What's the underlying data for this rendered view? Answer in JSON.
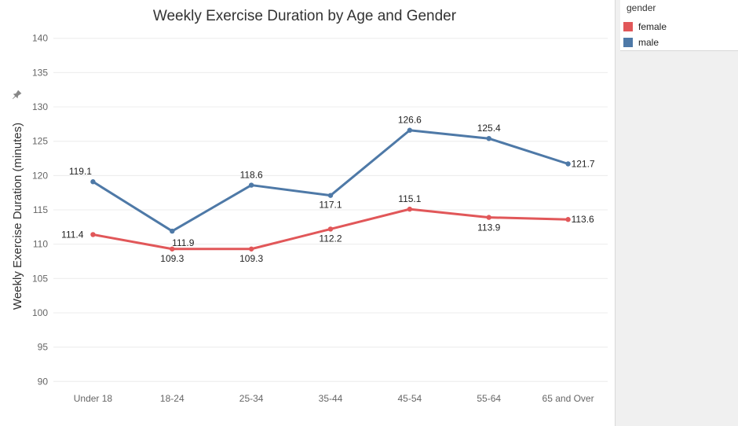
{
  "chart_data": {
    "type": "line",
    "title": "Weekly Exercise Duration by Age and Gender",
    "xlabel": "",
    "ylabel": "Weekly Exercise Duration (minutes)",
    "categories": [
      "Under 18",
      "18-24",
      "25-34",
      "35-44",
      "45-54",
      "55-64",
      "65 and Over"
    ],
    "ylim": [
      89,
      141
    ],
    "yticks": [
      90,
      95,
      100,
      105,
      110,
      115,
      120,
      125,
      130,
      135,
      140
    ],
    "grid": true,
    "legend_position": "top-right",
    "legend_title": "gender",
    "series": [
      {
        "name": "female",
        "color": "#e15759",
        "values": [
          111.4,
          109.3,
          109.3,
          112.2,
          115.1,
          113.9,
          113.6
        ],
        "labels": [
          "111.4",
          "109.3",
          "109.3",
          "112.2",
          "115.1",
          "113.9",
          "113.6"
        ]
      },
      {
        "name": "male",
        "color": "#4e79a7",
        "values": [
          119.1,
          111.9,
          118.6,
          117.1,
          126.6,
          125.4,
          121.7
        ],
        "labels": [
          "119.1",
          "111.9",
          "118.6",
          "117.1",
          "126.6",
          "125.4",
          "121.7"
        ]
      }
    ]
  }
}
